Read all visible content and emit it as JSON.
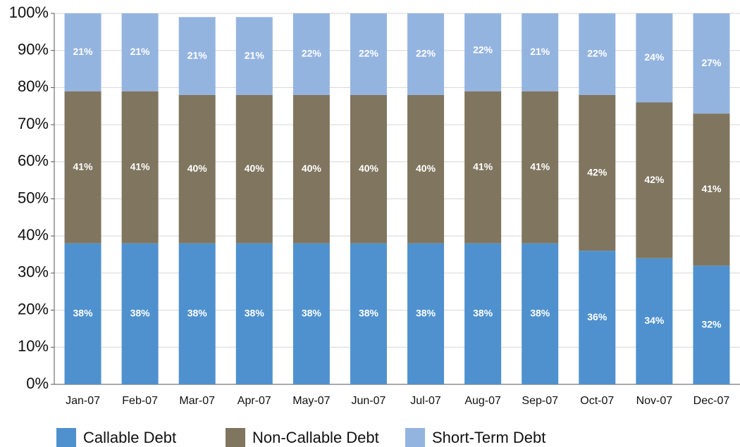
{
  "chart_data": {
    "type": "stacked_bar",
    "categories": [
      "Jan-07",
      "Feb-07",
      "Mar-07",
      "Apr-07",
      "May-07",
      "Jun-07",
      "Jul-07",
      "Aug-07",
      "Sep-07",
      "Oct-07",
      "Nov-07",
      "Dec-07"
    ],
    "series": [
      {
        "name": "Callable Debt",
        "color": "#4f91ce",
        "values": [
          38,
          38,
          38,
          38,
          38,
          38,
          38,
          38,
          38,
          36,
          34,
          32
        ],
        "value_labels": [
          "38%",
          "38%",
          "38%",
          "38%",
          "38%",
          "38%",
          "38%",
          "38%",
          "38%",
          "36%",
          "34%",
          "32%"
        ]
      },
      {
        "name": "Non-Callable Debt",
        "color": "#80755f",
        "values": [
          41,
          41,
          40,
          40,
          40,
          40,
          40,
          41,
          41,
          42,
          42,
          41
        ],
        "value_labels": [
          "41%",
          "41%",
          "40%",
          "40%",
          "40%",
          "40%",
          "40%",
          "41%",
          "41%",
          "42%",
          "42%",
          "41%"
        ]
      },
      {
        "name": "Short-Term Debt",
        "color": "#94b4e0",
        "values": [
          21,
          21,
          21,
          21,
          22,
          22,
          22,
          22,
          21,
          22,
          24,
          27
        ],
        "value_labels": [
          "21%",
          "21%",
          "21%",
          "21%",
          "22%",
          "22%",
          "22%",
          "22%",
          "21%",
          "22%",
          "24%",
          "27%"
        ]
      }
    ],
    "ylim": [
      0,
      100
    ],
    "yticks": [
      {
        "value": 0,
        "label": "0%"
      },
      {
        "value": 10,
        "label": "10%"
      },
      {
        "value": 20,
        "label": "20%"
      },
      {
        "value": 30,
        "label": "30%"
      },
      {
        "value": 40,
        "label": "40%"
      },
      {
        "value": 50,
        "label": "50%"
      },
      {
        "value": 60,
        "label": "60%"
      },
      {
        "value": 70,
        "label": "70%"
      },
      {
        "value": 80,
        "label": "80%"
      },
      {
        "value": 90,
        "label": "90%"
      },
      {
        "value": 100,
        "label": "100%"
      }
    ],
    "grid": true,
    "legend": "bottom"
  }
}
